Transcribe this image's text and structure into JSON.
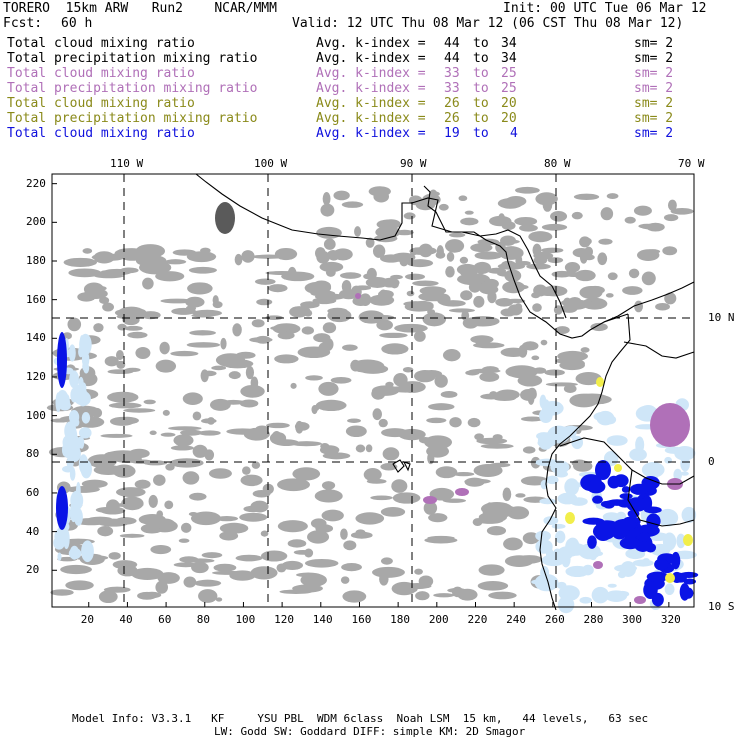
{
  "header": {
    "model": "TORERO  15km ARW   Run2    NCAR/MMM",
    "init": "Init: 00 UTC Tue 06 Mar 12",
    "fcst_label": "Fcst:",
    "fcst_value": "60 h",
    "valid": "Valid: 12 UTC Thu 08 Mar 12 (06 CST Thu 08 Mar 12)"
  },
  "legend": [
    {
      "variable": "Total cloud mixing ratio",
      "avg_label": "Avg. k-index =",
      "k_from": "44",
      "to": "to",
      "k_to": "34",
      "sm": "sm= 2",
      "color": "#000000"
    },
    {
      "variable": "Total precipitation mixing ratio",
      "avg_label": "Avg. k-index =",
      "k_from": "44",
      "to": "to",
      "k_to": "34",
      "sm": "sm= 2",
      "color": "#000000"
    },
    {
      "variable": "Total cloud mixing ratio",
      "avg_label": "Avg. k-index =",
      "k_from": "33",
      "to": "to",
      "k_to": "25",
      "sm": "sm= 2",
      "color": "#b070b8"
    },
    {
      "variable": "Total precipitation mixing ratio",
      "avg_label": "Avg. k-index =",
      "k_from": "33",
      "to": "to",
      "k_to": "25",
      "sm": "sm= 2",
      "color": "#b070b8"
    },
    {
      "variable": "Total cloud mixing ratio",
      "avg_label": "Avg. k-index =",
      "k_from": "26",
      "to": "to",
      "k_to": "20",
      "sm": "sm= 2",
      "color": "#8a8a1a"
    },
    {
      "variable": "Total precipitation mixing ratio",
      "avg_label": "Avg. k-index =",
      "k_from": "26",
      "to": "to",
      "k_to": "20",
      "sm": "sm= 2",
      "color": "#8a8a1a"
    },
    {
      "variable": "Total cloud mixing ratio",
      "avg_label": "Avg. k-index =",
      "k_from": "19",
      "to": "to",
      "k_to": "4",
      "sm": "sm= 2",
      "color": "#1010dd"
    }
  ],
  "map": {
    "lon_labels": [
      "110 W",
      "100 W",
      "90 W",
      "80 W",
      "70 W"
    ],
    "lat_labels": [
      "10 N",
      "0",
      "10 S"
    ],
    "y_ticks": [
      220,
      200,
      180,
      160,
      140,
      120,
      100,
      80,
      60,
      40,
      20
    ],
    "x_ticks": [
      20,
      40,
      60,
      80,
      100,
      120,
      140,
      160,
      180,
      200,
      220,
      240,
      260,
      280,
      300,
      320
    ],
    "x_range": [
      1,
      333
    ],
    "y_range": [
      1,
      225
    ],
    "colors": {
      "land_outline": "#000000",
      "cloud_gray": "#a8a8a8",
      "dark_gray": "#5a5a5a",
      "light_blue": "#cfe6f8",
      "blue": "#0a14e6",
      "purple": "#b070b8",
      "yellow": "#f2ee4a",
      "grid_line": "#000000"
    }
  },
  "footer": {
    "line1": "Model Info: V3.3.1   KF     YSU PBL  WDM 6class  Noah LSM  15 km,   44 levels,   63 sec",
    "line2": "LW: Godd SW: Goddard DIFF: simple KM: 2D Smagor"
  }
}
